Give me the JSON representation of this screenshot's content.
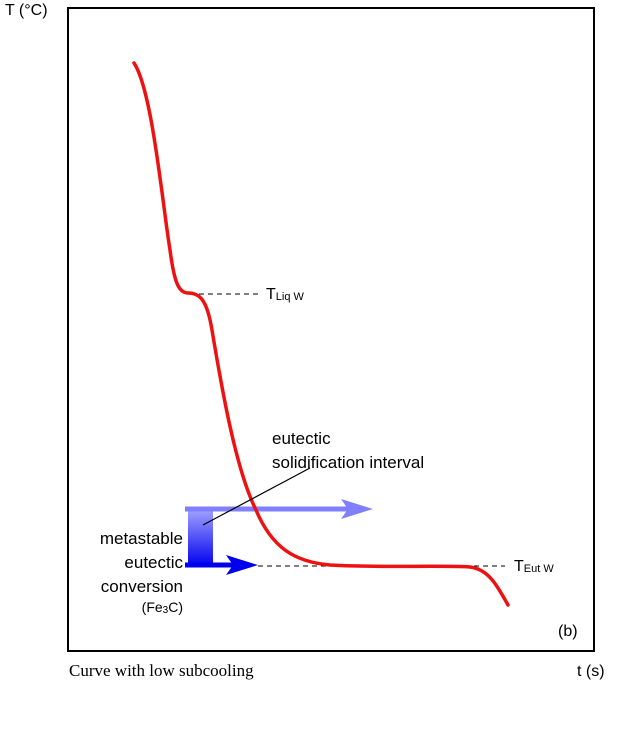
{
  "axes": {
    "y_label": "T (°C)",
    "x_label": "t (s)"
  },
  "caption": "Curve with low subcooling",
  "panel_label": "(b)",
  "markers": {
    "liquidus": {
      "main": "T",
      "sub": "Liq W"
    },
    "eutectic": {
      "main": "T",
      "sub": "Eut W"
    }
  },
  "annotations": {
    "interval_line1": "eutectic",
    "interval_line2": "solidification interval",
    "meta_line1": "metastable",
    "meta_line2": "eutectic",
    "meta_line3": "conversion",
    "meta_formula_pre": "(Fe",
    "meta_formula_sub": "3",
    "meta_formula_post": "C)"
  },
  "colors": {
    "curve": "#ee1111",
    "arrow_light": "#8080ff",
    "arrow_dark": "#0000ee",
    "frame": "#000000"
  }
}
